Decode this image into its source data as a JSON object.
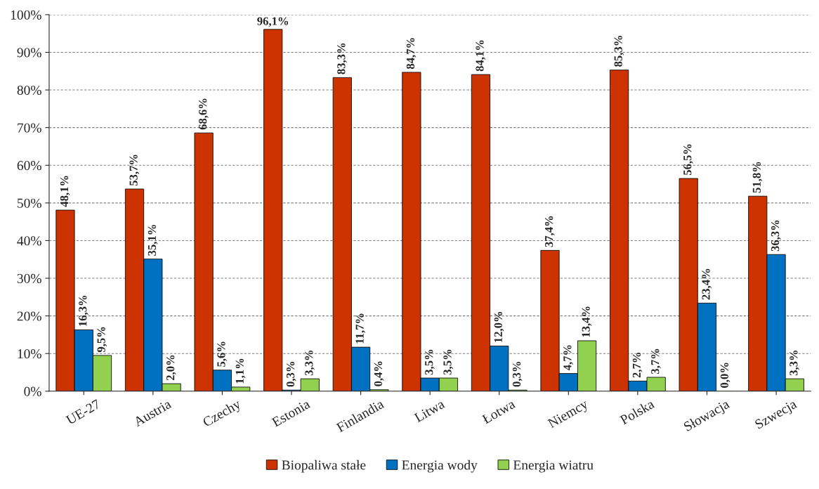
{
  "chart_data": {
    "type": "bar",
    "categories": [
      "UE-27",
      "Austria",
      "Czechy",
      "Estonia",
      "Finlandia",
      "Litwa",
      "Łotwa",
      "Niemcy",
      "Polska",
      "Słowacja",
      "Szwecja"
    ],
    "series": [
      {
        "name": "Biopaliwa stałe",
        "color": "#cc3300",
        "values": [
          48.1,
          53.7,
          68.6,
          96.1,
          83.3,
          84.7,
          84.1,
          37.4,
          85.3,
          56.5,
          51.8
        ],
        "value_labels": [
          "48,1%",
          "53,7%",
          "68,6%",
          "96,1%",
          "83,3%",
          "84,7%",
          "84,1%",
          "37,4%",
          "85,3%",
          "56,5%",
          "51,8%"
        ]
      },
      {
        "name": "Energia wody",
        "color": "#0070c0",
        "values": [
          16.3,
          35.1,
          5.6,
          0.3,
          11.7,
          3.5,
          12.0,
          4.7,
          2.7,
          23.4,
          36.3
        ],
        "value_labels": [
          "16,3%",
          "35,1%",
          "5,6%",
          "0,3%",
          "11,7%",
          "3,5%",
          "12,0%",
          "4,7%",
          "2,7%",
          "23,4%",
          "36,3%"
        ]
      },
      {
        "name": "Energia wiatru",
        "color": "#92d050",
        "values": [
          9.5,
          2.0,
          1.1,
          3.3,
          0.4,
          3.5,
          0.3,
          13.4,
          3.7,
          0.0,
          3.3
        ],
        "value_labels": [
          "9,5%",
          "2,0%",
          "1,1%",
          "3,3%",
          "0,4%",
          "3,5%",
          "0,3%",
          "13,4%",
          "3,7%",
          "0,0%",
          "3,3%"
        ]
      }
    ],
    "ylim": [
      0,
      100
    ],
    "yticks": [
      {
        "value": 0,
        "label": "0%"
      },
      {
        "value": 10,
        "label": "10%"
      },
      {
        "value": 20,
        "label": "20%"
      },
      {
        "value": 30,
        "label": "30%"
      },
      {
        "value": 40,
        "label": "40%"
      },
      {
        "value": 50,
        "label": "50%"
      },
      {
        "value": 60,
        "label": "60%"
      },
      {
        "value": 70,
        "label": "70%"
      },
      {
        "value": 80,
        "label": "80%"
      },
      {
        "value": 90,
        "label": "90%"
      },
      {
        "value": 100,
        "label": "100%"
      }
    ],
    "grid": "y",
    "legend": "bottom"
  }
}
